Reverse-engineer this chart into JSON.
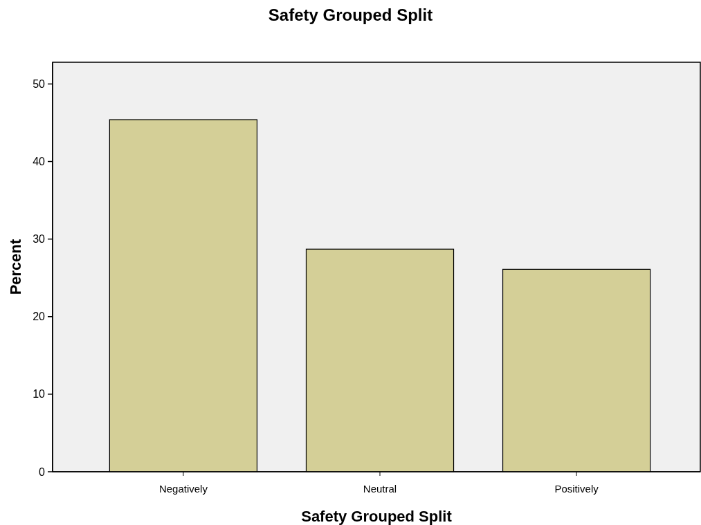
{
  "chart_data": {
    "type": "bar",
    "title": "Safety Grouped Split",
    "xlabel": "Safety Grouped Split",
    "ylabel": "Percent",
    "categories": [
      "Negatively",
      "Neutral",
      "Positively"
    ],
    "values": [
      45.4,
      28.7,
      26.1
    ],
    "color": "#d4cf97",
    "ylim": [
      0,
      52.8
    ],
    "yticks": [
      0,
      10,
      20,
      30,
      40,
      50
    ],
    "grid": false
  }
}
